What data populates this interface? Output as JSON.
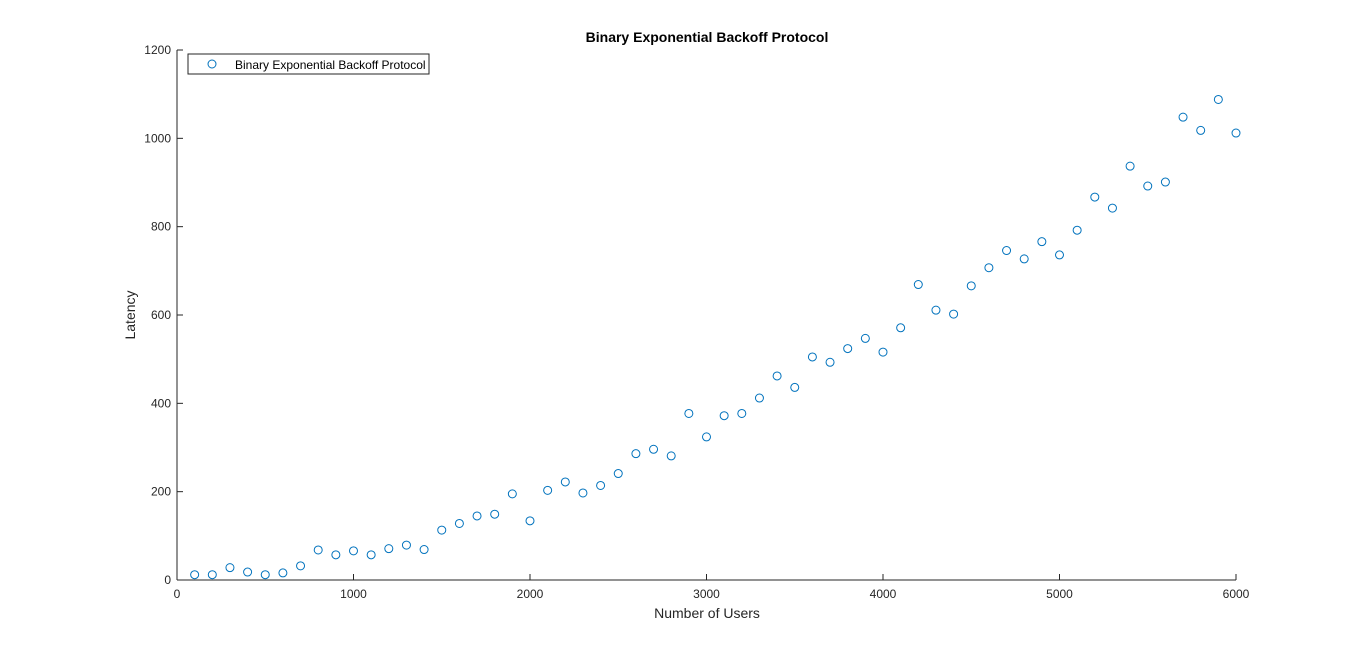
{
  "chart_data": {
    "type": "scatter",
    "title": "Binary Exponential Backoff Protocol",
    "xlabel": "Number of Users",
    "ylabel": "Latency",
    "xlim": [
      0,
      6000
    ],
    "ylim": [
      0,
      1200
    ],
    "xticks": [
      0,
      1000,
      2000,
      3000,
      4000,
      5000,
      6000
    ],
    "yticks": [
      0,
      200,
      400,
      600,
      800,
      1000,
      1200
    ],
    "grid": false,
    "legend_position": "top-left",
    "marker": "open-circle",
    "series_color": "#0072BD",
    "series": [
      {
        "name": "Binary Exponential Backoff Protocol",
        "x": [
          100,
          200,
          300,
          400,
          500,
          600,
          700,
          800,
          900,
          1000,
          1100,
          1200,
          1300,
          1400,
          1500,
          1600,
          1700,
          1800,
          1900,
          2000,
          2100,
          2200,
          2300,
          2400,
          2500,
          2600,
          2700,
          2800,
          2900,
          3000,
          3100,
          3200,
          3300,
          3400,
          3500,
          3600,
          3700,
          3800,
          3900,
          4000,
          4100,
          4200,
          4300,
          4400,
          4500,
          4600,
          4700,
          4800,
          4900,
          5000,
          5100,
          5200,
          5300,
          5400,
          5500,
          5600,
          5700,
          5800,
          5900,
          6000
        ],
        "y": [
          12,
          12,
          28,
          18,
          12,
          16,
          32,
          68,
          57,
          66,
          57,
          71,
          79,
          69,
          113,
          128,
          145,
          149,
          195,
          134,
          203,
          222,
          197,
          214,
          241,
          286,
          296,
          281,
          377,
          324,
          372,
          377,
          412,
          462,
          436,
          505,
          493,
          524,
          547,
          516,
          571,
          669,
          611,
          602,
          666,
          707,
          746,
          727,
          766,
          736,
          792,
          867,
          842,
          937,
          892,
          901,
          1048,
          1018,
          1088,
          1012
        ]
      }
    ]
  }
}
